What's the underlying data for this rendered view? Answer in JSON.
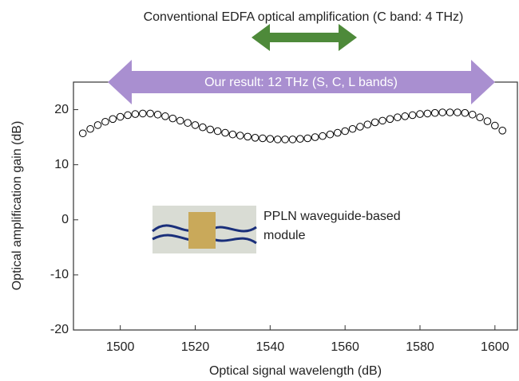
{
  "chart_data": {
    "type": "scatter",
    "annotations": {
      "edfa": "Conventional EDFA optical amplification (C band: 4 THz)",
      "result": "Our result: 12 THz (S, C, L bands)",
      "module": [
        "PPLN waveguide-based",
        "module"
      ]
    },
    "xlabel": "Optical signal wavelength (dB)",
    "ylabel": "Optical amplification gain (dB)",
    "x": [
      1490,
      1492,
      1494,
      1496,
      1498,
      1500,
      1502,
      1504,
      1506,
      1508,
      1510,
      1512,
      1514,
      1516,
      1518,
      1520,
      1522,
      1524,
      1526,
      1528,
      1530,
      1532,
      1534,
      1536,
      1538,
      1540,
      1542,
      1544,
      1546,
      1548,
      1550,
      1552,
      1554,
      1556,
      1558,
      1560,
      1562,
      1564,
      1566,
      1568,
      1570,
      1572,
      1574,
      1576,
      1578,
      1580,
      1582,
      1584,
      1586,
      1588,
      1590,
      1592,
      1594,
      1596,
      1598,
      1600,
      1602
    ],
    "values": [
      15.7,
      16.5,
      17.2,
      17.8,
      18.3,
      18.7,
      19.0,
      19.2,
      19.3,
      19.3,
      19.1,
      18.8,
      18.4,
      18.0,
      17.6,
      17.2,
      16.8,
      16.4,
      16.1,
      15.8,
      15.5,
      15.3,
      15.1,
      14.9,
      14.8,
      14.7,
      14.6,
      14.6,
      14.6,
      14.7,
      14.8,
      15.0,
      15.2,
      15.5,
      15.8,
      16.1,
      16.5,
      16.9,
      17.3,
      17.7,
      18.0,
      18.3,
      18.6,
      18.8,
      19.0,
      19.2,
      19.3,
      19.4,
      19.5,
      19.5,
      19.5,
      19.4,
      19.1,
      18.6,
      17.9,
      17.1,
      16.2
    ],
    "color": "#000000",
    "xlim": [
      1487.5,
      1606
    ],
    "xticks": [
      1500,
      1520,
      1540,
      1560,
      1580,
      1600
    ],
    "ylim": [
      -20,
      25
    ],
    "yticks": [
      -20,
      -10,
      0,
      10,
      20
    ],
    "grid": false
  }
}
